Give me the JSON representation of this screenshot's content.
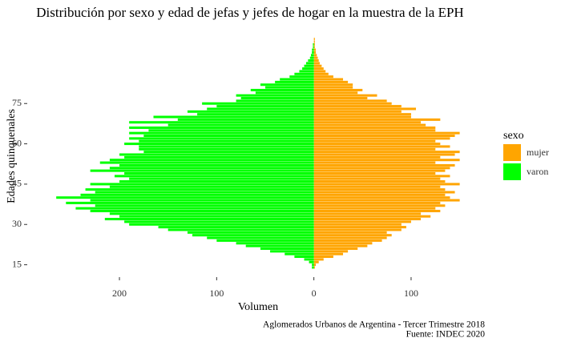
{
  "chart_data": {
    "type": "bar",
    "orientation": "horizontal",
    "title": "Distribución por sexo y edad de jefas y jefes de hogar en la muestra de la EPH",
    "xlabel": "Volumen",
    "ylabel": "Edades quinquenales",
    "caption": [
      "Aglomerados Urbanos de Argentina - Tercer Trimestre 2018",
      "Fuente: INDEC 2020"
    ],
    "legend_title": "sexo",
    "legend": "right",
    "y": [
      14,
      15,
      16,
      17,
      18,
      19,
      20,
      21,
      22,
      23,
      24,
      25,
      26,
      27,
      28,
      29,
      30,
      31,
      32,
      33,
      34,
      35,
      36,
      37,
      38,
      39,
      40,
      41,
      42,
      43,
      44,
      45,
      46,
      47,
      48,
      49,
      50,
      51,
      52,
      53,
      54,
      55,
      56,
      57,
      58,
      59,
      60,
      61,
      62,
      63,
      64,
      65,
      66,
      67,
      68,
      69,
      70,
      71,
      72,
      73,
      74,
      75,
      76,
      77,
      78,
      79,
      80,
      81,
      82,
      83,
      84,
      85,
      86,
      87,
      88,
      89,
      90,
      91,
      92,
      93,
      94,
      95,
      96,
      97,
      98,
      99
    ],
    "series": [
      {
        "name": "mujer",
        "color": "#FFA500",
        "values": [
          1,
          2,
          5,
          10,
          20,
          30,
          35,
          45,
          55,
          60,
          70,
          75,
          80,
          75,
          90,
          95,
          90,
          100,
          110,
          120,
          110,
          130,
          125,
          135,
          130,
          150,
          140,
          135,
          145,
          135,
          130,
          150,
          135,
          130,
          140,
          125,
          135,
          140,
          145,
          125,
          150,
          130,
          145,
          150,
          125,
          140,
          130,
          125,
          140,
          145,
          150,
          125,
          125,
          115,
          110,
          130,
          100,
          100,
          90,
          105,
          90,
          80,
          75,
          55,
          65,
          45,
          50,
          40,
          40,
          35,
          30,
          20,
          15,
          12,
          10,
          8,
          6,
          5,
          4,
          3,
          2,
          2,
          1,
          1,
          1,
          1
        ]
      },
      {
        "name": "varon",
        "color": "#00FF00",
        "values": [
          -2,
          -2,
          -5,
          -10,
          -20,
          -30,
          -45,
          -55,
          -70,
          -80,
          -100,
          -110,
          -125,
          -130,
          -150,
          -160,
          -190,
          -195,
          -215,
          -200,
          -210,
          -230,
          -245,
          -225,
          -255,
          -230,
          -265,
          -240,
          -225,
          -235,
          -210,
          -230,
          -200,
          -190,
          -205,
          -195,
          -230,
          -210,
          -200,
          -220,
          -210,
          -195,
          -200,
          -175,
          -180,
          -180,
          -195,
          -180,
          -190,
          -175,
          -190,
          -170,
          -190,
          -150,
          -190,
          -140,
          -165,
          -120,
          -130,
          -110,
          -100,
          -115,
          -80,
          -75,
          -80,
          -60,
          -65,
          -50,
          -55,
          -40,
          -35,
          -25,
          -20,
          -15,
          -12,
          -10,
          -8,
          -6,
          -4,
          -3,
          -2,
          -2,
          -1,
          -1,
          0,
          0
        ]
      }
    ],
    "xlim": [
      -294,
      180
    ],
    "xticks": [
      {
        "value": -200,
        "label": "200"
      },
      {
        "value": -100,
        "label": "100"
      },
      0,
      100
    ],
    "ylim": [
      11,
      101
    ],
    "yticks": [
      15,
      30,
      45,
      60,
      75
    ],
    "grid": false
  }
}
